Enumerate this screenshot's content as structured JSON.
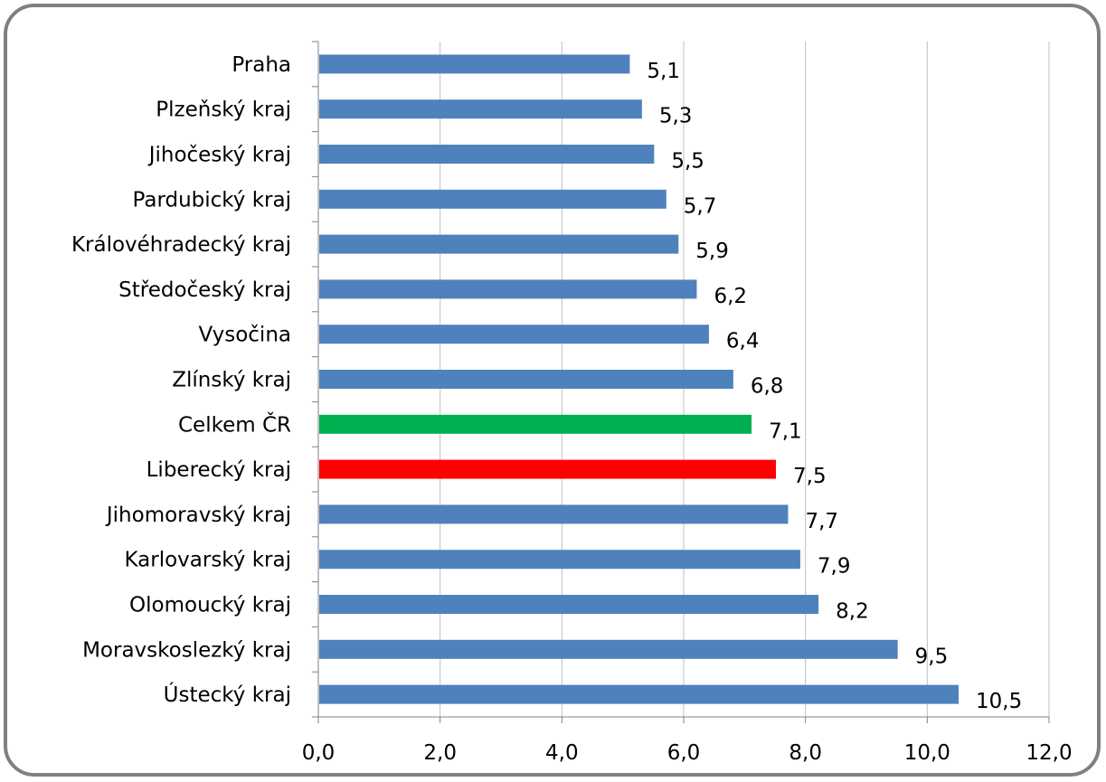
{
  "chart_data": {
    "type": "bar",
    "orientation": "horizontal",
    "categories": [
      "Praha",
      "Plzeňský kraj",
      "Jihočeský kraj",
      "Pardubický kraj",
      "Královéhradecký kraj",
      "Středočeský kraj",
      "Vysočina",
      "Zlínský kraj",
      "Celkem ČR",
      "Liberecký kraj",
      "Jihomoravský kraj",
      "Karlovarský kraj",
      "Olomoucký kraj",
      "Moravskoslezký kraj",
      "Ústecký kraj"
    ],
    "values": [
      5.1,
      5.3,
      5.5,
      5.7,
      5.9,
      6.2,
      6.4,
      6.8,
      7.1,
      7.5,
      7.7,
      7.9,
      8.2,
      9.5,
      10.5
    ],
    "data_labels": [
      "5,1",
      "5,3",
      "5,5",
      "5,7",
      "5,9",
      "6,2",
      "6,4",
      "6,8",
      "7,1",
      "7,5",
      "7,7",
      "7,9",
      "8,2",
      "9,5",
      "10,5"
    ],
    "xlim": [
      0,
      12
    ],
    "x_ticks": [
      0,
      2,
      4,
      6,
      8,
      10,
      12
    ],
    "x_tick_labels": [
      "0,0",
      "2,0",
      "4,0",
      "6,0",
      "8,0",
      "10,0",
      "12,0"
    ],
    "grid": "vertical",
    "legend": "none",
    "colors": {
      "default": "#4F81BD",
      "Celkem ČR": "#00B050",
      "Liberecký kraj": "#FF0000",
      "grid": "#BFBFBF",
      "frame": "#808080"
    }
  }
}
